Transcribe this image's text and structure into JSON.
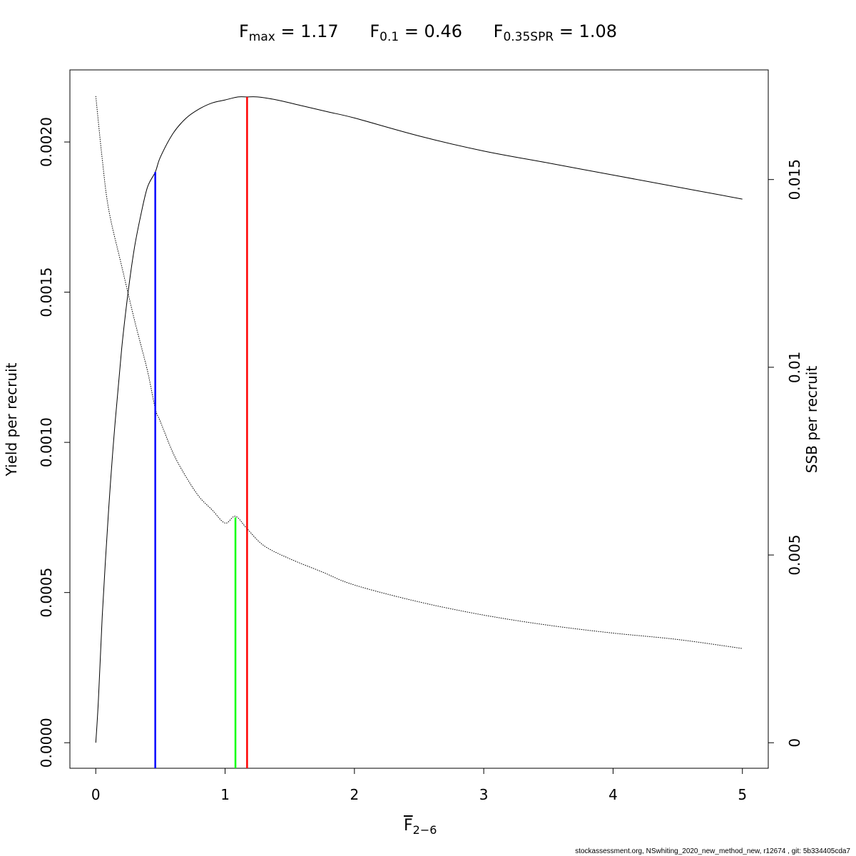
{
  "title": {
    "items": [
      {
        "sym": "F",
        "sub": "max",
        "value": "= 1.17"
      },
      {
        "sym": "F",
        "sub": "0.1",
        "value": "= 0.46"
      },
      {
        "sym": "F",
        "sub": "0.35SPR",
        "value": "= 1.08"
      }
    ]
  },
  "axes": {
    "ylabel_left": "Yield per recruit",
    "ylabel_right": "SSB per recruit",
    "xlabel_sym": "F",
    "xlabel_sub": "2−6"
  },
  "footer": "stockassessment.org, NSwhiting_2020_new_method_new, r12674 , git: 5b334405cda7",
  "chart_data": {
    "type": "line",
    "x_ticks": [
      0,
      1,
      2,
      3,
      4,
      5
    ],
    "x_tick_labels": [
      "0",
      "1",
      "2",
      "3",
      "4",
      "5"
    ],
    "y_left_ticks": [
      0,
      0.0005,
      0.001,
      0.0015,
      0.002
    ],
    "y_left_tick_labels": [
      "0.0000",
      "0.0005",
      "0.0010",
      "0.0015",
      "0.0020"
    ],
    "y_right_ticks": [
      0,
      0.005,
      0.01,
      0.015
    ],
    "y_right_tick_labels": [
      "0",
      "0.005",
      "0.01",
      "0.015"
    ],
    "xlim": [
      -0.2,
      5.2
    ],
    "ylim_left": [
      -8.5e-05,
      0.00224
    ],
    "ylim_right": [
      -0.00068,
      0.01792
    ],
    "series": [
      {
        "axis": "left",
        "style": "solid",
        "color": "#000000",
        "x": [
          0,
          0.02,
          0.05,
          0.1,
          0.15,
          0.2,
          0.25,
          0.3,
          0.35,
          0.4,
          0.46,
          0.5,
          0.6,
          0.7,
          0.8,
          0.9,
          1.0,
          1.1,
          1.17,
          1.25,
          1.4,
          1.6,
          1.8,
          2.0,
          2.5,
          3.0,
          3.5,
          4.0,
          4.5,
          5.0
        ],
        "y": [
          0,
          0.00014,
          0.00042,
          0.00078,
          0.00107,
          0.00131,
          0.0015,
          0.00165,
          0.00176,
          0.00185,
          0.0019,
          0.00195,
          0.00203,
          0.00208,
          0.00211,
          0.00213,
          0.00214,
          0.00215,
          0.00215,
          0.00215,
          0.00214,
          0.00212,
          0.0021,
          0.00208,
          0.00202,
          0.00197,
          0.00193,
          0.00189,
          0.00185,
          0.00181
        ]
      },
      {
        "axis": "right",
        "style": "dotted",
        "color": "#000000",
        "x": [
          0,
          0.05,
          0.1,
          0.2,
          0.3,
          0.4,
          0.46,
          0.5,
          0.6,
          0.7,
          0.8,
          0.9,
          1.0,
          1.08,
          1.17,
          1.3,
          1.5,
          1.75,
          2.0,
          2.5,
          3.0,
          3.5,
          4.0,
          4.5,
          5.0
        ],
        "y": [
          0.01722,
          0.01555,
          0.0142,
          0.0127,
          0.01125,
          0.0099,
          0.0089,
          0.00855,
          0.0077,
          0.00707,
          0.00655,
          0.0062,
          0.00585,
          0.00603,
          0.0057,
          0.00525,
          0.0049,
          0.00455,
          0.0042,
          0.00375,
          0.0034,
          0.00313,
          0.00292,
          0.00275,
          0.00251
        ]
      }
    ],
    "reference_lines": [
      {
        "label": "F0.1",
        "x": 0.46,
        "y_left_top": 0.0019,
        "color": "#0000ff"
      },
      {
        "label": "F0.35SPR",
        "x": 1.08,
        "y_left_top": 0.00075,
        "color": "#00ff00"
      },
      {
        "label": "Fmax",
        "x": 1.17,
        "y_left_top": 0.00215,
        "color": "#ff0000"
      }
    ]
  }
}
